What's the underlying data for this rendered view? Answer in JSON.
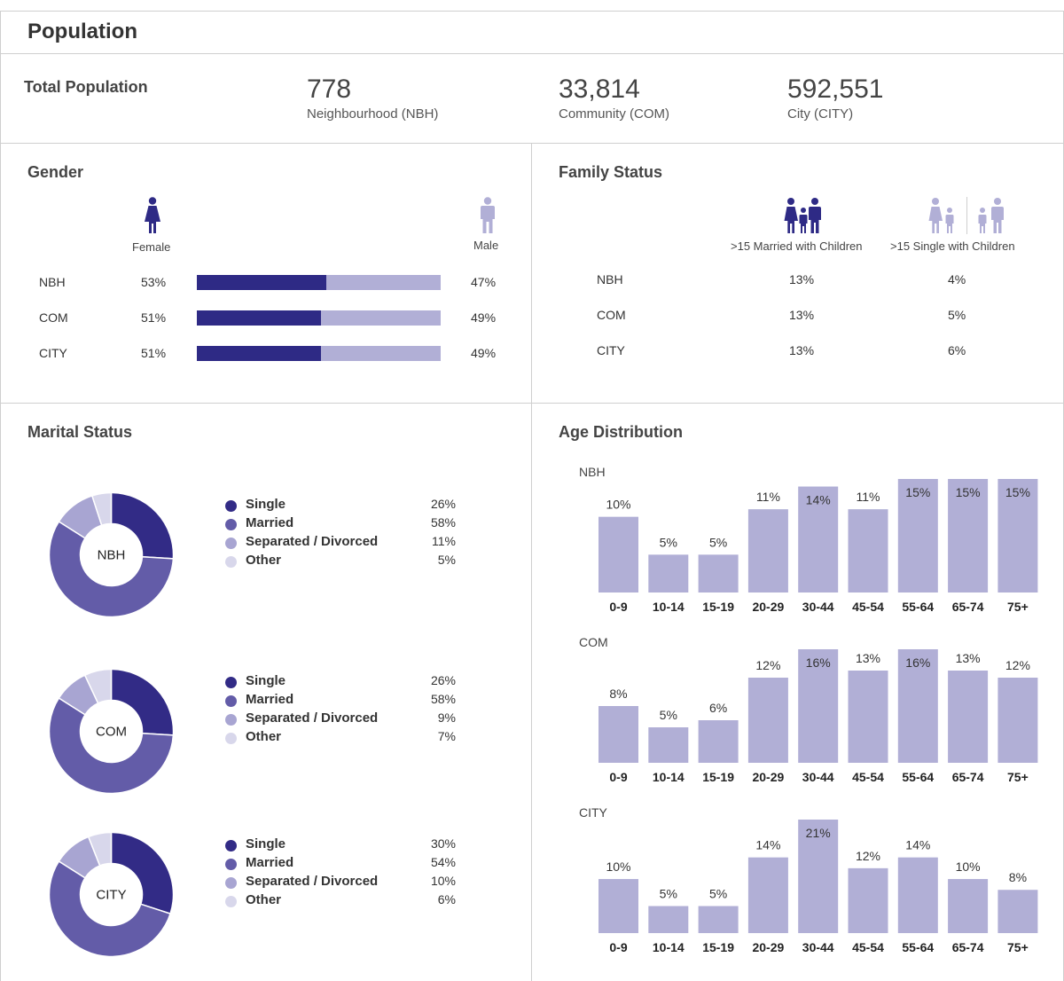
{
  "title": "Population",
  "total": {
    "label": "Total Population",
    "items": [
      {
        "value": "778",
        "label": "Neighbourhood (NBH)"
      },
      {
        "value": "33,814",
        "label": "Community (COM)"
      },
      {
        "value": "592,551",
        "label": "City (CITY)"
      }
    ]
  },
  "gender": {
    "title": "Gender",
    "female_label": "Female",
    "male_label": "Male",
    "rows": [
      {
        "label": "NBH",
        "female": "53%",
        "male": "47%",
        "female_share": 0.53
      },
      {
        "label": "COM",
        "female": "51%",
        "male": "49%",
        "female_share": 0.51
      },
      {
        "label": "CITY",
        "female": "51%",
        "male": "49%",
        "female_share": 0.51
      }
    ],
    "colors": {
      "female": "#2e2a85",
      "male": "#b1afd6"
    }
  },
  "family": {
    "title": "Family Status",
    "col1": ">15 Married with Children",
    "col2": ">15 Single with Children",
    "rows": [
      {
        "label": "NBH",
        "married": "13%",
        "single": "4%"
      },
      {
        "label": "COM",
        "married": "13%",
        "single": "5%"
      },
      {
        "label": "CITY",
        "married": "13%",
        "single": "6%"
      }
    ]
  },
  "marital": {
    "title": "Marital Status",
    "colors": [
      "#322b86",
      "#635ca8",
      "#a8a5d2",
      "#d8d7eb"
    ],
    "categories": [
      "Single",
      "Married",
      "Separated / Divorced",
      "Other"
    ],
    "groups": [
      {
        "name": "NBH",
        "values": [
          26,
          58,
          11,
          5
        ],
        "labels": [
          "26%",
          "58%",
          "11%",
          "5%"
        ]
      },
      {
        "name": "COM",
        "values": [
          26,
          58,
          9,
          7
        ],
        "labels": [
          "26%",
          "58%",
          "9%",
          "7%"
        ]
      },
      {
        "name": "CITY",
        "values": [
          30,
          54,
          10,
          6
        ],
        "labels": [
          "30%",
          "54%",
          "10%",
          "6%"
        ]
      }
    ]
  },
  "age": {
    "title": "Age Distribution"
  },
  "chart_data": [
    {
      "type": "bar",
      "title": "NBH",
      "categories": [
        "0-9",
        "10-14",
        "15-19",
        "20-29",
        "30-44",
        "45-54",
        "55-64",
        "65-74",
        "75+"
      ],
      "values": [
        10,
        5,
        5,
        11,
        14,
        11,
        15,
        15,
        15
      ],
      "ylim": [
        0,
        15
      ],
      "color": "#b1afd6"
    },
    {
      "type": "bar",
      "title": "COM",
      "categories": [
        "0-9",
        "10-14",
        "15-19",
        "20-29",
        "30-44",
        "45-54",
        "55-64",
        "65-74",
        "75+"
      ],
      "values": [
        8,
        5,
        6,
        12,
        16,
        13,
        16,
        13,
        12
      ],
      "ylim": [
        0,
        16
      ],
      "color": "#b1afd6"
    },
    {
      "type": "bar",
      "title": "CITY",
      "categories": [
        "0-9",
        "10-14",
        "15-19",
        "20-29",
        "30-44",
        "45-54",
        "55-64",
        "65-74",
        "75+"
      ],
      "values": [
        10,
        5,
        5,
        14,
        21,
        12,
        14,
        10,
        8
      ],
      "ylim": [
        0,
        21
      ],
      "color": "#b1afd6"
    }
  ]
}
